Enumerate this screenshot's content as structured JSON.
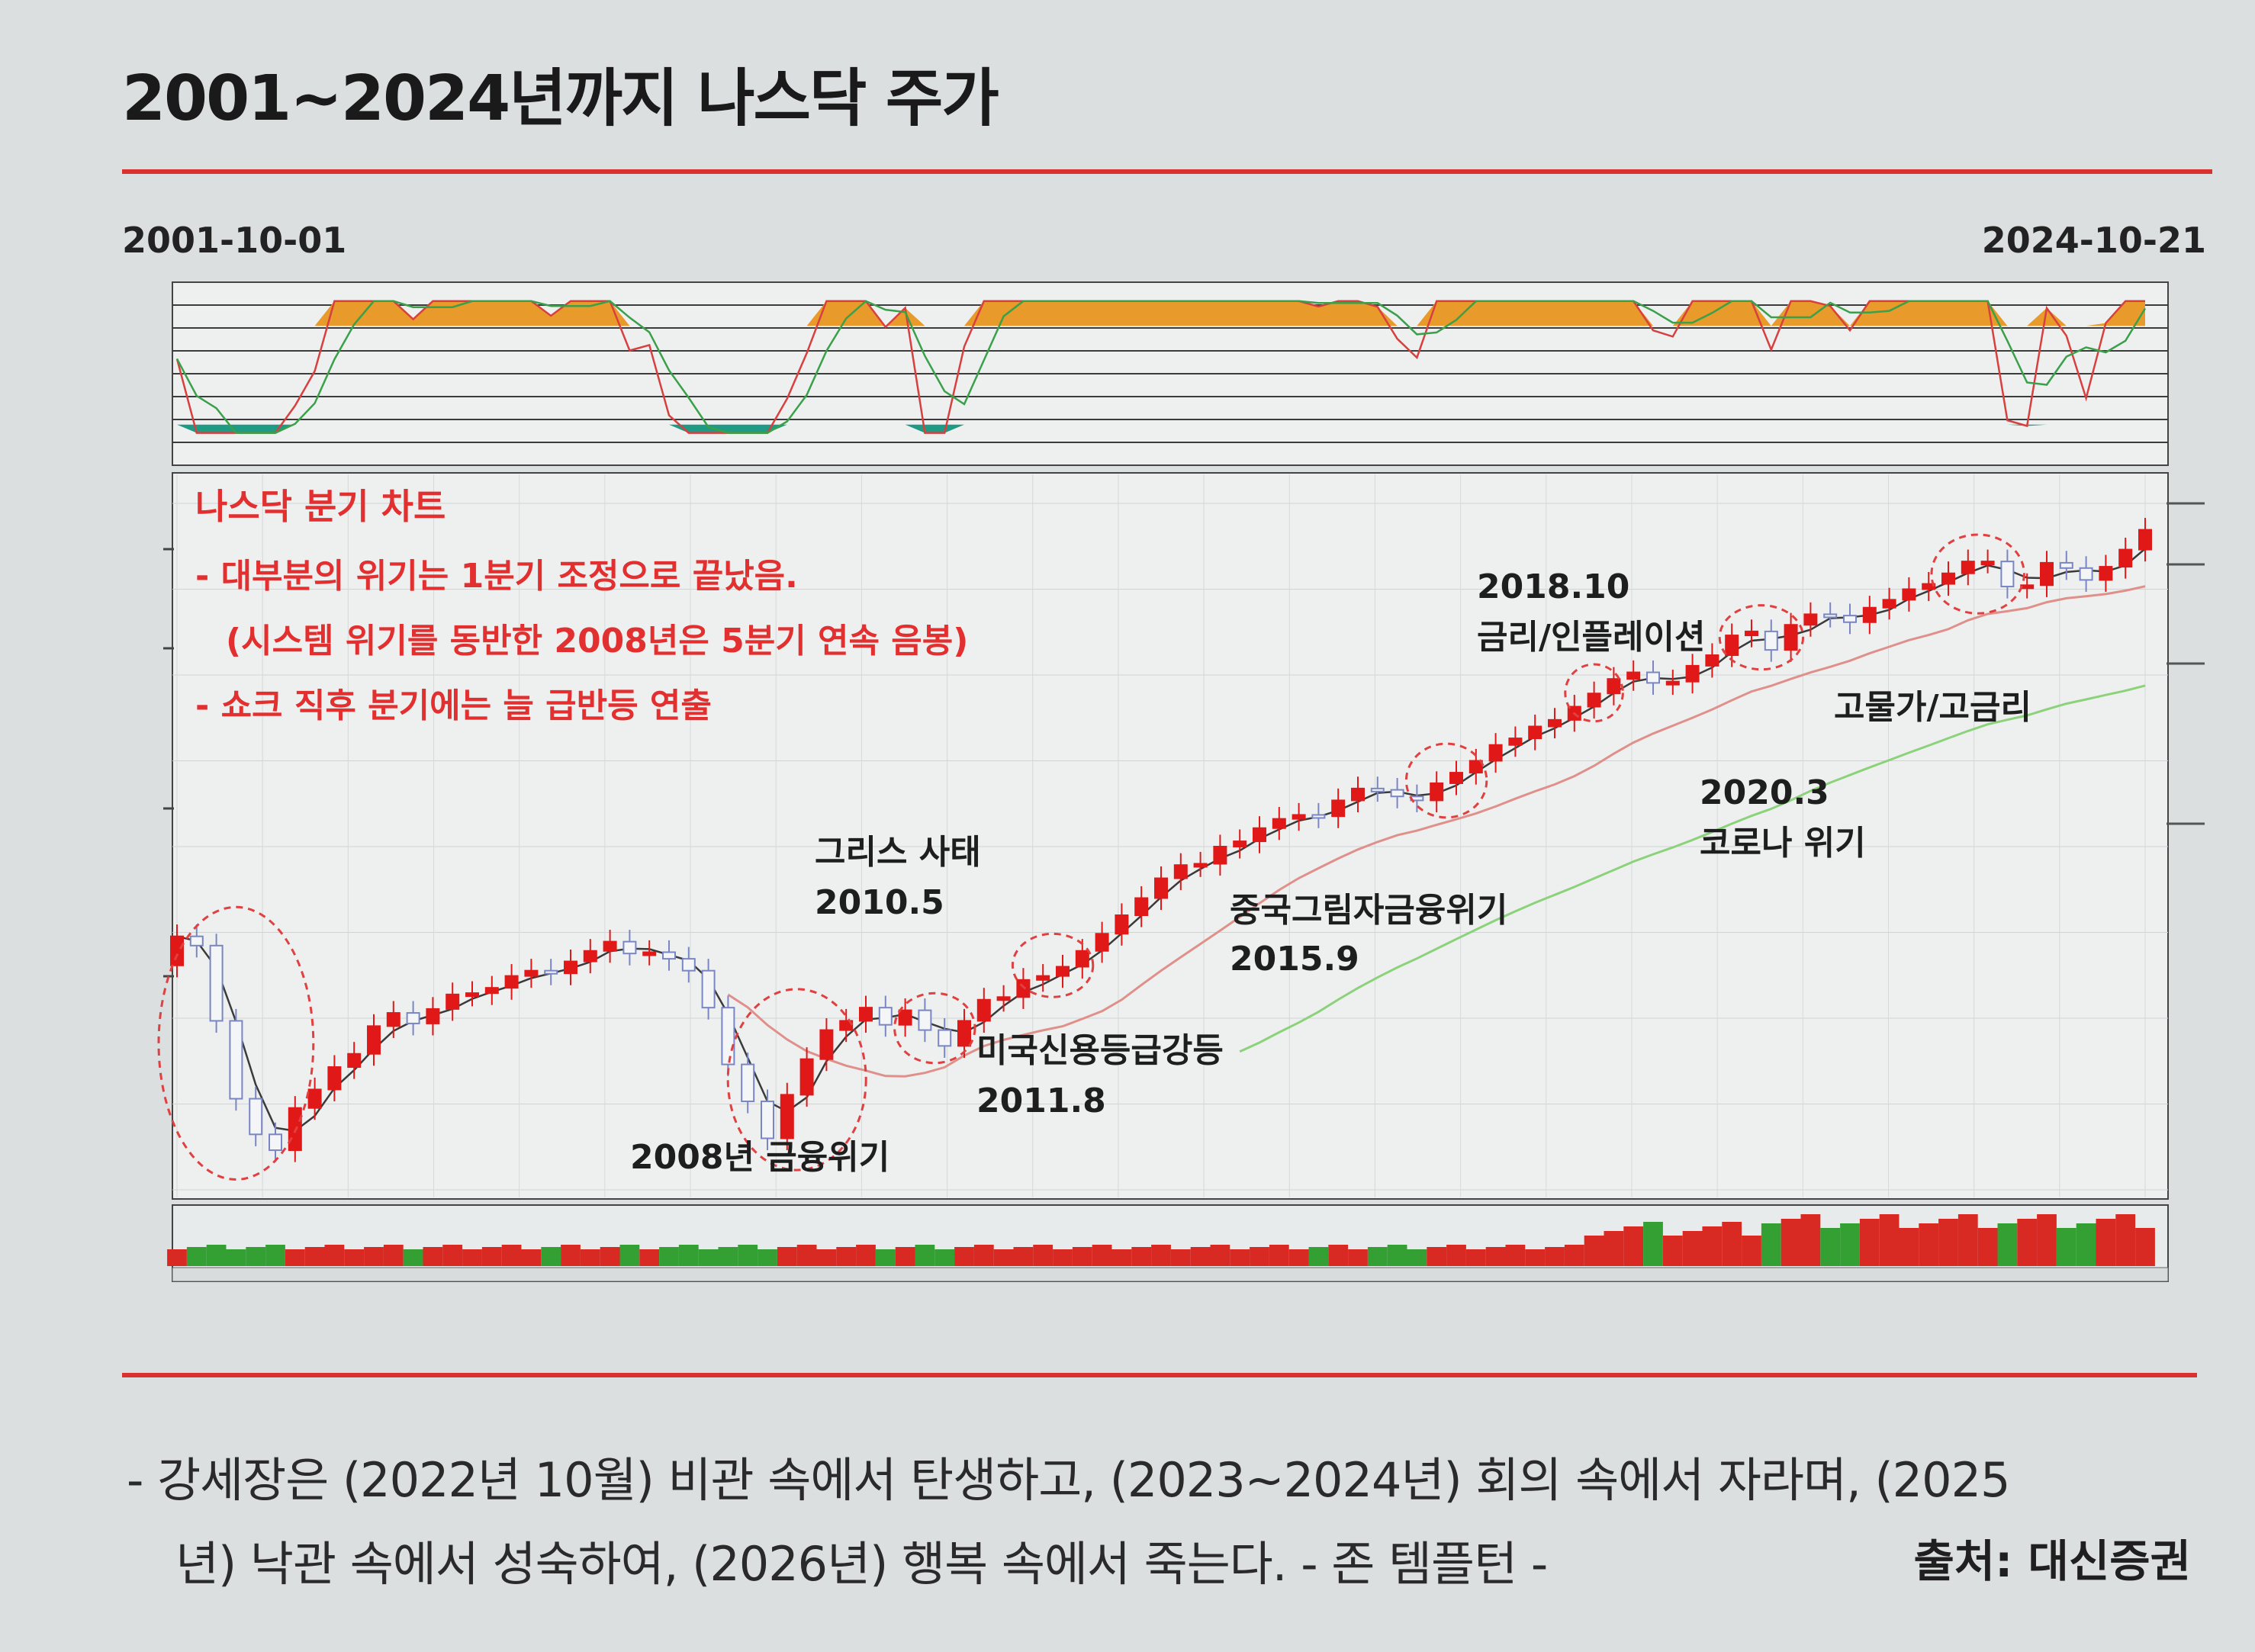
{
  "title": "2001~2024년까지 나스닥 주가",
  "date_start": "2001-10-01",
  "date_end": "2024-10-21",
  "quote": {
    "line1": "- 강세장은 (2022년 10월) 비관 속에서 탄생하고, (2023~2024년) 회의 속에서 자라며, (2025",
    "line2": "년) 낙관 속에서 성숙하여, (2026년) 행복 속에서 죽는다. - 존 템플턴 -"
  },
  "source": "출처: 대신증권",
  "colors": {
    "accent": "#d93030",
    "candle_up": "#e01818",
    "candle_down": "#7a86c4",
    "ma_short": "#3a3a3a",
    "ma_mid": "#e0908a",
    "ma_long": "#8cd27a",
    "osc_fill_up": "#e89a2a",
    "osc_fill_down": "#1f9a84",
    "volume_up": "#d82a22",
    "volume_down": "#34a034"
  },
  "chart_data": {
    "type": "candlestick",
    "frequency": "quarterly",
    "notes_box": {
      "heading": "나스닥 분기 차트",
      "lines": [
        "- 대부분의 위기는 1분기 조정으로 끝났음.",
        "(시스템 위기를 동반한 2008년은 5분기 연속 음봉)",
        "- 쇼크 직후 분기에는 늘 급반등 연출"
      ]
    },
    "annotations": [
      {
        "label": "2008년 금융위기"
      },
      {
        "label": "그리스 사태",
        "date": "2010.5"
      },
      {
        "label": "미국신용등급강등",
        "date": "2011.8"
      },
      {
        "label": "중국그림자금융위기",
        "date": "2015.9"
      },
      {
        "label": "2018.10",
        "date": "금리/인플레이션"
      },
      {
        "label": "2020.3",
        "date": "코로나 위기"
      },
      {
        "label": "고물가/고금리"
      }
    ],
    "close_index": [
      73.2,
      72.5,
      66.8,
      60.9,
      58.2,
      57.0,
      60.2,
      61.6,
      63.3,
      64.3,
      66.4,
      67.4,
      66.6,
      67.7,
      68.8,
      68.9,
      69.3,
      70.2,
      70.6,
      70.4,
      71.3,
      72.1,
      72.8,
      71.9,
      72.0,
      71.5,
      70.6,
      67.8,
      63.5,
      60.7,
      57.9,
      61.2,
      63.9,
      66.1,
      66.8,
      67.8,
      66.5,
      67.6,
      66.1,
      64.9,
      66.8,
      68.4,
      68.6,
      69.9,
      70.2,
      70.9,
      72.1,
      73.4,
      74.8,
      76.1,
      77.6,
      78.6,
      78.7,
      80.0,
      80.4,
      81.4,
      82.1,
      82.4,
      82.3,
      83.5,
      84.4,
      84.3,
      83.8,
      83.5,
      84.8,
      85.6,
      86.5,
      87.7,
      88.2,
      89.1,
      89.6,
      90.6,
      91.6,
      92.7,
      93.2,
      92.4,
      92.5,
      93.7,
      94.5,
      96.0,
      96.3,
      94.9,
      96.8,
      97.6,
      97.5,
      97.0,
      98.1,
      98.7,
      99.5,
      99.9,
      100.7,
      101.6,
      101.6,
      99.7,
      99.8,
      101.5,
      101.1,
      100.2,
      101.2,
      102.5,
      104.0
    ],
    "candle_colors_note": "red = up quarter, blue/lavender = down quarter",
    "lower_oscillator": {
      "range": [
        0,
        100
      ]
    },
    "volume_panel": {
      "present": true
    }
  }
}
